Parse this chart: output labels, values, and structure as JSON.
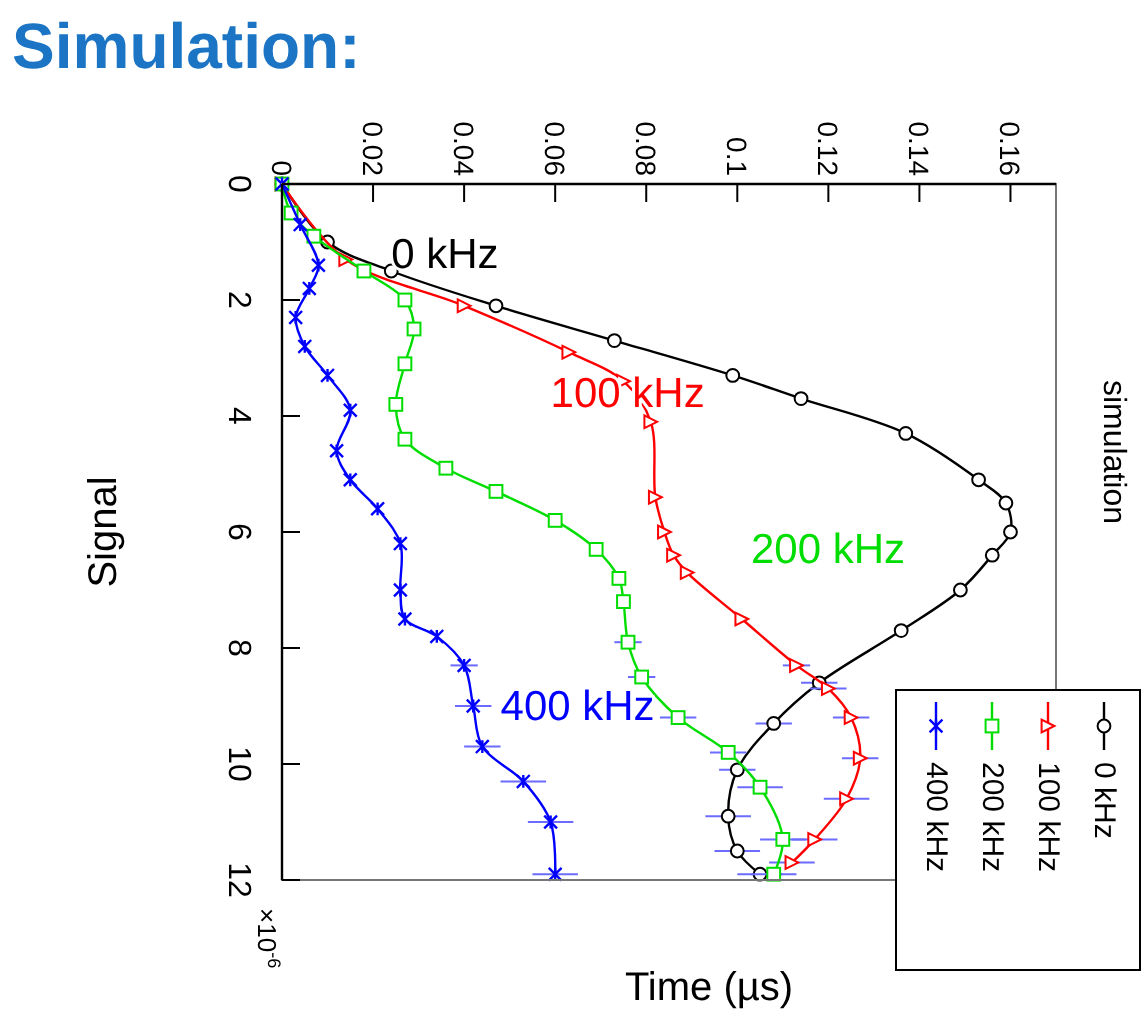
{
  "chart_data": {
    "type": "line",
    "title": "Simulation:",
    "xlabel": "Time (µs)",
    "ylabel": "Signal",
    "xlim": [
      0,
      0.17
    ],
    "xticks": [
      0,
      0.02,
      0.04,
      0.06,
      0.08,
      0.1,
      0.12,
      0.14,
      0.16
    ],
    "ylim": [
      12,
      0
    ],
    "yticks": [
      0,
      2,
      4,
      6,
      8,
      10,
      12
    ],
    "legend": "bottom right",
    "grid": false,
    "annotations": [
      "0 kHz",
      "100 kHz",
      "200 kHz",
      "400 kHz",
      "×10$^{-6}$",
      "simulation"
    ],
    "series": [
      {
        "name": "0 kHz",
        "color": "#000000",
        "marker": "circle",
        "x": [
          0,
          0.01,
          0.024,
          0.047,
          0.073,
          0.099,
          0.114,
          0.137,
          0.153,
          0.159,
          0.16,
          0.156,
          0.149,
          0.136,
          0.118,
          0.108,
          0.1,
          0.098,
          0.1,
          0.105
        ],
        "values": [
          0,
          1.0,
          1.5,
          2.1,
          2.7,
          3.3,
          3.7,
          4.3,
          5.1,
          5.5,
          6.0,
          6.4,
          7.0,
          7.7,
          8.6,
          9.3,
          10.1,
          10.9,
          11.5,
          11.9
        ],
        "xerrors": [
          null,
          null,
          null,
          null,
          null,
          null,
          null,
          null,
          null,
          null,
          null,
          null,
          null,
          null,
          0.004,
          0.004,
          0.004,
          0.005,
          0.005,
          0.005
        ]
      },
      {
        "name": "100 kHz",
        "color": "#ff0000",
        "marker": "triangle",
        "x": [
          0,
          0.014,
          0.04,
          0.063,
          0.075,
          0.081,
          0.082,
          0.084,
          0.086,
          0.089,
          0.101,
          0.113,
          0.12,
          0.125,
          0.127,
          0.124,
          0.117,
          0.112
        ],
        "values": [
          0,
          1.3,
          2.1,
          2.9,
          3.4,
          4.1,
          5.4,
          6.0,
          6.4,
          6.7,
          7.5,
          8.3,
          8.7,
          9.2,
          9.9,
          10.6,
          11.3,
          11.7
        ],
        "xerrors": [
          null,
          null,
          null,
          null,
          null,
          null,
          null,
          null,
          null,
          null,
          null,
          0.003,
          0.004,
          0.004,
          0.004,
          0.005,
          0.005,
          0.005
        ]
      },
      {
        "name": "200 kHz",
        "color": "#00dd00",
        "marker": "square",
        "x": [
          0,
          0.002,
          0.007,
          0.018,
          0.027,
          0.029,
          0.027,
          0.025,
          0.027,
          0.036,
          0.047,
          0.06,
          0.069,
          0.074,
          0.075,
          0.076,
          0.079,
          0.087,
          0.098,
          0.105,
          0.11,
          0.108
        ],
        "values": [
          0,
          0.5,
          0.9,
          1.5,
          2.0,
          2.5,
          3.1,
          3.8,
          4.4,
          4.9,
          5.3,
          5.8,
          6.3,
          6.8,
          7.2,
          7.9,
          8.5,
          9.2,
          9.8,
          10.4,
          11.3,
          11.9
        ],
        "xerrors": [
          null,
          null,
          null,
          null,
          null,
          null,
          null,
          null,
          null,
          null,
          null,
          null,
          null,
          null,
          null,
          0.003,
          0.003,
          0.004,
          0.004,
          0.005,
          0.005,
          0.005
        ]
      },
      {
        "name": "400 kHz",
        "color": "#0000ff",
        "marker": "cross",
        "x": [
          0,
          0.004,
          0.008,
          0.006,
          0.003,
          0.005,
          0.01,
          0.015,
          0.012,
          0.015,
          0.021,
          0.026,
          0.026,
          0.027,
          0.034,
          0.04,
          0.042,
          0.044,
          0.053,
          0.059,
          0.06
        ],
        "values": [
          0,
          0.7,
          1.4,
          1.8,
          2.3,
          2.8,
          3.3,
          3.9,
          4.6,
          5.1,
          5.6,
          6.2,
          7.0,
          7.5,
          7.8,
          8.3,
          9.0,
          9.7,
          10.3,
          11.0,
          11.9
        ],
        "xerrors": [
          null,
          null,
          null,
          null,
          null,
          null,
          null,
          null,
          null,
          null,
          null,
          null,
          null,
          null,
          null,
          0.003,
          0.004,
          0.004,
          0.005,
          0.005,
          0.005
        ]
      }
    ]
  }
}
